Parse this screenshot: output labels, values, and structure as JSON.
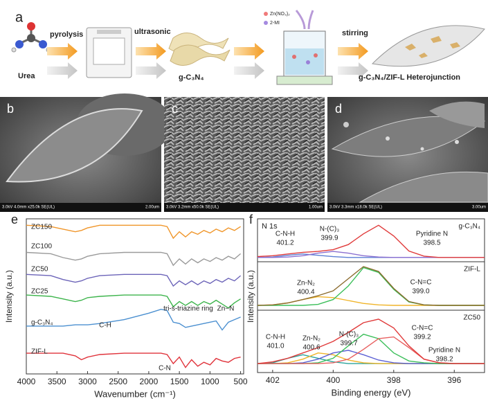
{
  "panel_a": {
    "letter": "a",
    "start": "Urea",
    "step1": "pyrolysis",
    "step2": "ultrasonic",
    "product1": "g-C₃N₄",
    "reagent1": "Zn(NO₃)₂",
    "reagent2": "2-MI",
    "step3": "stirring",
    "product2": "g-C₃N₄/ZIF-L Heterojunction"
  },
  "images": [
    {
      "letter": "b",
      "info": "3.0kV 4.0mm x25.0k SE(UL)",
      "scale": "2.00um"
    },
    {
      "letter": "c",
      "info": "3.0kV 3.2mm x50.0k SE(UL)",
      "scale": "1.00um"
    },
    {
      "letter": "d",
      "info": "3.0kV 3.3mm x18.0k SE(UL)",
      "scale": "3.00um"
    }
  ],
  "chart_data": [
    {
      "type": "line",
      "letter": "e",
      "xlabel": "Wavenumber (cm⁻¹)",
      "ylabel": "Intensity (a.u.)",
      "xlim": [
        4000,
        450
      ],
      "xticks": [
        4000,
        3500,
        3000,
        2500,
        2000,
        1500,
        1000,
        500
      ],
      "ylim": [
        0,
        12
      ],
      "x": [
        4000,
        3600,
        3400,
        3200,
        3100,
        3000,
        2800,
        2400,
        2000,
        1800,
        1700,
        1600,
        1500,
        1400,
        1300,
        1200,
        1100,
        1000,
        900,
        800,
        700,
        600,
        500
      ],
      "series": [
        {
          "name": "ZC150",
          "color": "#f0962a",
          "values": [
            11.5,
            11.4,
            11.2,
            11.0,
            11.1,
            11.3,
            11.5,
            11.5,
            11.5,
            11.5,
            11.4,
            10.5,
            11.0,
            10.6,
            11.0,
            10.8,
            11.1,
            10.9,
            11.2,
            11.0,
            11.3,
            11.1,
            11.4
          ]
        },
        {
          "name": "ZC100",
          "color": "#9a9a9a",
          "values": [
            9.4,
            9.3,
            9.0,
            8.8,
            8.9,
            9.1,
            9.3,
            9.4,
            9.4,
            9.4,
            9.3,
            8.4,
            8.9,
            8.5,
            8.9,
            8.6,
            8.9,
            8.7,
            9.0,
            8.8,
            9.1,
            8.9,
            9.3
          ]
        },
        {
          "name": "ZC50",
          "color": "#6b63b8",
          "values": [
            7.7,
            7.6,
            7.3,
            7.1,
            7.2,
            7.4,
            7.6,
            7.7,
            7.7,
            7.7,
            7.6,
            6.8,
            7.2,
            6.9,
            7.2,
            6.9,
            7.2,
            7.0,
            7.3,
            7.1,
            7.4,
            7.2,
            7.6
          ]
        },
        {
          "name": "ZC25",
          "color": "#3cb44b",
          "values": [
            6.1,
            6.0,
            5.8,
            5.6,
            5.7,
            5.9,
            6.0,
            6.1,
            6.1,
            6.1,
            6.0,
            5.2,
            5.6,
            5.3,
            5.6,
            5.3,
            5.6,
            5.4,
            5.7,
            5.4,
            5.1,
            5.5,
            5.8
          ]
        },
        {
          "name": "g-C₃N₄",
          "color": "#4a8fd0",
          "values": [
            3.7,
            3.7,
            3.7,
            3.8,
            3.8,
            3.8,
            3.9,
            4.2,
            4.7,
            5.0,
            4.9,
            4.0,
            3.9,
            3.6,
            3.7,
            3.8,
            3.9,
            4.0,
            4.1,
            3.4,
            4.0,
            4.2,
            4.4
          ]
        },
        {
          "name": "ZIF-L",
          "color": "#e0323a",
          "values": [
            1.6,
            1.6,
            1.6,
            1.4,
            1.1,
            1.3,
            1.5,
            1.6,
            1.6,
            1.6,
            1.5,
            0.8,
            1.3,
            0.5,
            1.1,
            0.6,
            0.9,
            0.7,
            1.2,
            1.0,
            0.9,
            1.2,
            1.3
          ]
        }
      ],
      "annotations": [
        "tri-s-triazine ring",
        "C-H",
        "C-N",
        "Zn−N"
      ]
    },
    {
      "type": "line",
      "letter": "f",
      "title": "N 1s",
      "sample": "g-C₃N₄",
      "ylabel": "Intensity (a.u.)",
      "xlim": [
        402.5,
        395
      ],
      "ylim": [
        0,
        10
      ],
      "x": [
        402.5,
        402,
        401.5,
        401,
        400.5,
        400,
        399.5,
        399,
        398.5,
        398,
        397.5,
        397,
        396.5,
        396,
        395.5,
        395
      ],
      "series": [
        {
          "color": "#5b7fd4",
          "values": [
            1,
            1.1,
            1.5,
            1.8,
            1.5,
            1.2,
            1,
            1,
            1,
            1,
            1,
            1,
            1,
            1,
            1,
            1
          ]
        },
        {
          "color": "#8a6fd0",
          "values": [
            1,
            1,
            1.1,
            1.4,
            2.0,
            2.4,
            2.0,
            1.4,
            1.1,
            1,
            1,
            1,
            1,
            1,
            1,
            1
          ]
        },
        {
          "color": "#e03a3a",
          "values": [
            1.2,
            1.4,
            1.8,
            2.2,
            2.4,
            2.8,
            4.0,
            6.5,
            8.5,
            6.0,
            2.5,
            1.3,
            1.0,
            1.0,
            1.0,
            1.0
          ]
        }
      ],
      "annotations": [
        {
          "text": "C-N-H",
          "value": "401.2",
          "color": "#3a9a8a"
        },
        {
          "text": "N-(C)₃",
          "value": "399.9",
          "color": "#6b5bc0"
        },
        {
          "text": "Pyridine N",
          "value": "398.5",
          "color": "#d03030"
        }
      ]
    },
    {
      "type": "line",
      "sample": "ZIF-L",
      "xlim": [
        402.5,
        395
      ],
      "ylim": [
        0,
        10
      ],
      "x": [
        402.5,
        402,
        401.5,
        401,
        400.5,
        400,
        399.5,
        399,
        398.5,
        398,
        397.5,
        397,
        396.5,
        396,
        395.5,
        395
      ],
      "series": [
        {
          "color": "#f0b428",
          "values": [
            1,
            1.1,
            1.5,
            2.2,
            2.8,
            2.6,
            2.0,
            1.4,
            1.1,
            1,
            1,
            1,
            1,
            1,
            1,
            1
          ]
        },
        {
          "color": "#3cbf5a",
          "values": [
            1,
            1,
            1,
            1,
            1.2,
            2.2,
            5.0,
            8.8,
            7.8,
            4.3,
            1.7,
            1.1,
            1,
            1,
            1,
            1
          ]
        },
        {
          "color": "#8b6b2e",
          "values": [
            1,
            1.1,
            1.5,
            2.2,
            3.0,
            4.0,
            6.5,
            9.0,
            8.0,
            4.5,
            1.8,
            1.1,
            1,
            1,
            1,
            1
          ]
        }
      ],
      "annotations": [
        {
          "text": "Zn-N₂",
          "value": "400.4",
          "color": "#e0a010"
        },
        {
          "text": "C-N=C",
          "value": "399.0",
          "color": "#2aaa4a"
        }
      ]
    },
    {
      "type": "line",
      "sample": "ZC50",
      "xlabel": "Binding energy (eV)",
      "xlim": [
        402.5,
        395
      ],
      "xticks": [
        402,
        400,
        398,
        396
      ],
      "ylim": [
        0,
        7
      ],
      "x": [
        402.5,
        402,
        401.5,
        401,
        400.5,
        400,
        399.5,
        399,
        398.5,
        398,
        397.5,
        397,
        396.5,
        396,
        395.5,
        395
      ],
      "series": [
        {
          "color": "#2aa39a",
          "values": [
            1,
            1.1,
            1.6,
            2.0,
            1.6,
            1.2,
            1,
            1,
            1,
            1,
            1,
            1,
            1,
            1,
            1,
            1
          ]
        },
        {
          "color": "#f0b428",
          "values": [
            1,
            1,
            1.1,
            1.5,
            2.2,
            2.0,
            1.4,
            1.1,
            1,
            1,
            1,
            1,
            1,
            1,
            1,
            1
          ]
        },
        {
          "color": "#5b5fd4",
          "values": [
            1,
            1,
            1,
            1.1,
            1.5,
            2.2,
            2.5,
            2.0,
            1.4,
            1.1,
            1,
            1,
            1,
            1,
            1,
            1
          ]
        },
        {
          "color": "#3cbf5a",
          "values": [
            1,
            1,
            1,
            1,
            1.1,
            1.6,
            3.0,
            4.3,
            3.8,
            2.2,
            1.3,
            1.1,
            1,
            1,
            1,
            1
          ]
        },
        {
          "color": "#e86060",
          "values": [
            1,
            1,
            1,
            1,
            1,
            1.1,
            1.5,
            2.6,
            3.8,
            4.0,
            2.8,
            1.5,
            1.1,
            1,
            1,
            1
          ]
        },
        {
          "color": "#e03a3a",
          "values": [
            1,
            1.2,
            1.6,
            2.2,
            2.8,
            3.5,
            4.5,
            5.6,
            6.0,
            5.0,
            3.0,
            1.5,
            1.1,
            1,
            1,
            1
          ]
        }
      ],
      "annotations": [
        {
          "text": "C-N-H",
          "value": "401.0",
          "color": "#2a8a8a"
        },
        {
          "text": "Zn-N₂",
          "value": "400.6",
          "color": "#e0a010"
        },
        {
          "text": "N-(C)₃",
          "value": "399.7",
          "color": "#4a4fc0"
        },
        {
          "text": "C-N=C",
          "value": "399.2",
          "color": "#2aaa4a"
        },
        {
          "text": "Pyridine N",
          "value": "398.2",
          "color": "#d03030"
        }
      ]
    }
  ]
}
